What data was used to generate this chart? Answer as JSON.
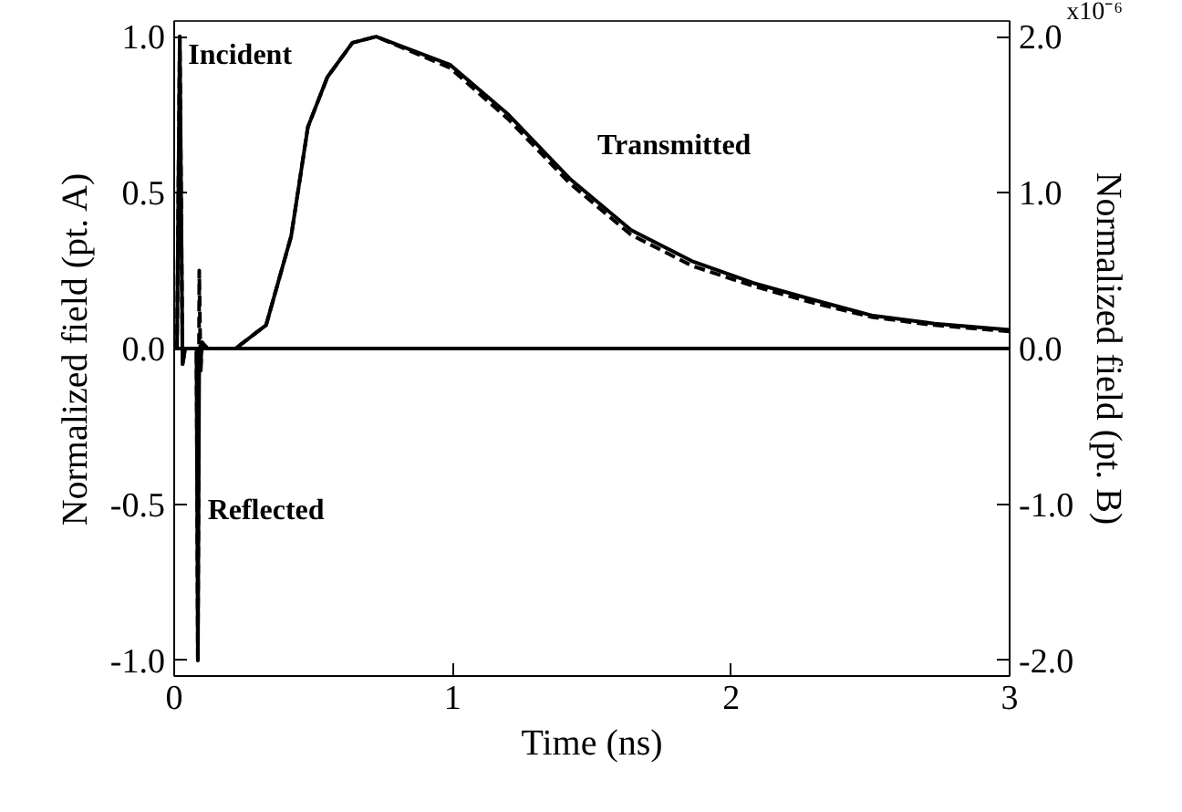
{
  "chart_data": {
    "type": "line",
    "xlabel": "Time (ns)",
    "ylabel": "Normalized field (pt. A)",
    "y2label": "Normalized field (pt. B)",
    "xlim": [
      0,
      3
    ],
    "xticks": [
      0,
      1,
      2,
      3
    ],
    "ylim": [
      -1.05,
      1.05
    ],
    "yticks": [
      {
        "value": -1,
        "label": "-1.0"
      },
      {
        "value": -0.5,
        "label": "-0.5"
      },
      {
        "value": 0,
        "label": "0.0"
      },
      {
        "value": 0.5,
        "label": "0.5"
      },
      {
        "value": 1,
        "label": "1.0"
      }
    ],
    "y2lim": [
      -2.1,
      2.1
    ],
    "y2ticks": [
      {
        "value": -2,
        "label": "-2.0"
      },
      {
        "value": -1,
        "label": "-1.0"
      },
      {
        "value": 0,
        "label": "0.0"
      },
      {
        "value": 1,
        "label": "1.0"
      },
      {
        "value": 2,
        "label": "2.0"
      }
    ],
    "grid": false,
    "series": [
      {
        "color": "#000000",
        "line_style": "solid",
        "x": [
          0,
          0.01,
          0.02,
          0.03,
          0.04,
          0.08,
          0.085,
          0.09,
          0.095,
          0.1,
          0.12,
          0.15,
          3
        ],
        "values": [
          0,
          0,
          1.0,
          -0.05,
          0,
          0,
          -1.0,
          0.0,
          -0.05,
          0.02,
          0,
          0,
          0
        ]
      },
      {
        "color": "#000000",
        "line_style": "dashed",
        "x": [
          0,
          0.01,
          0.02,
          0.03,
          0.04,
          0.08,
          0.085,
          0.09,
          0.095,
          0.1,
          0.12,
          0.15,
          3
        ],
        "values": [
          0,
          0,
          1.0,
          -0.05,
          0,
          0,
          -1.0,
          0.25,
          -0.08,
          0.02,
          0,
          0,
          0
        ]
      },
      {
        "color": "#000000",
        "line_style": "solid",
        "axis": "y2",
        "x": [
          0,
          0.22,
          0.33,
          0.42,
          0.48,
          0.55,
          0.64,
          0.725,
          0.99,
          1.2,
          1.42,
          1.64,
          1.86,
          2.08,
          2.3,
          2.51,
          2.73,
          3.0
        ],
        "values": [
          0,
          0,
          0.15,
          0.72,
          1.42,
          1.74,
          1.96,
          2.0,
          1.82,
          1.5,
          1.09,
          0.76,
          0.56,
          0.42,
          0.31,
          0.21,
          0.16,
          0.12
        ]
      },
      {
        "color": "#000000",
        "line_style": "dashed",
        "axis": "y2",
        "x": [
          0,
          0.22,
          0.33,
          0.42,
          0.48,
          0.55,
          0.64,
          0.725,
          0.99,
          1.2,
          1.42,
          1.64,
          1.86,
          2.08,
          2.3,
          2.51,
          2.73,
          3.0
        ],
        "values": [
          0,
          0,
          0.15,
          0.72,
          1.42,
          1.74,
          1.96,
          2.0,
          1.8,
          1.47,
          1.06,
          0.73,
          0.53,
          0.4,
          0.29,
          0.2,
          0.15,
          0.11
        ]
      }
    ],
    "annotations": [
      {
        "text": "Incident",
        "x": 0.05,
        "y": 0.94
      },
      {
        "text": "Reflected",
        "x": 0.12,
        "y": -0.52
      },
      "Transmitted",
      "x10⁻⁶"
    ]
  }
}
